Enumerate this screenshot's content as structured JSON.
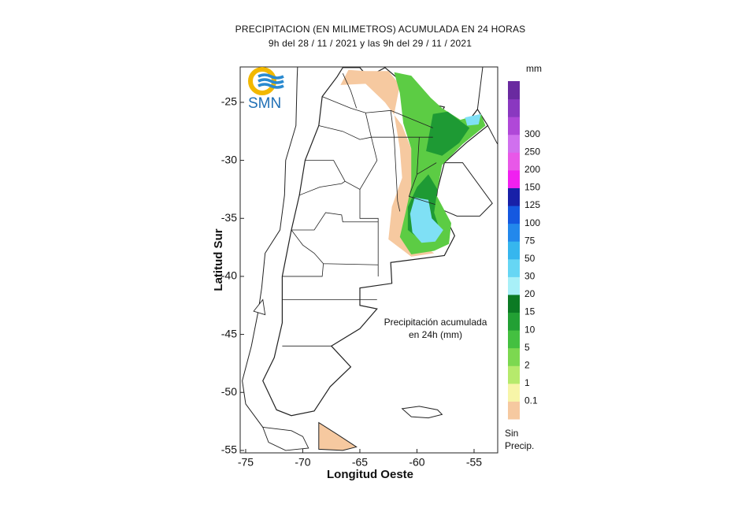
{
  "header": {
    "title": "PRECIPITACION (EN MILIMETROS) ACUMULADA EN 24 HORAS",
    "subtitle": "9h del 28 / 11 / 2021  y las 9h del 29 / 11 / 2021"
  },
  "logo": "SMN",
  "map": {
    "xlabel": "Longitud Oeste",
    "ylabel": "Latitud Sur",
    "xlim": [
      -75.48,
      -52.93
    ],
    "ylim": [
      -55.21,
      -21.95
    ],
    "xticks": [
      -75,
      -70,
      -65,
      -60,
      -55
    ],
    "yticks": [
      -25,
      -30,
      -35,
      -40,
      -45,
      -50,
      -55
    ],
    "annotation": [
      "Precipitación acumulada",
      "en 24h (mm)"
    ]
  },
  "legend": {
    "unit": "mm",
    "levels": [
      0.1,
      1,
      2,
      5,
      10,
      15,
      20,
      30,
      50,
      75,
      100,
      125,
      150,
      200,
      250,
      300
    ],
    "colors": [
      "#f6c9a0",
      "#f7f5a8",
      "#b6ea6c",
      "#7cd850",
      "#44c040",
      "#22a034",
      "#0c7a24",
      "#a8f0f8",
      "#66d6f4",
      "#36b6ee",
      "#2288ec",
      "#1458e0",
      "#1820a8",
      "#f020f0",
      "#e858e8",
      "#d070ee",
      "#b048d8",
      "#8a38c0",
      "#6a2aa0"
    ],
    "no_precip_label": [
      "Sin",
      "Precip."
    ]
  }
}
